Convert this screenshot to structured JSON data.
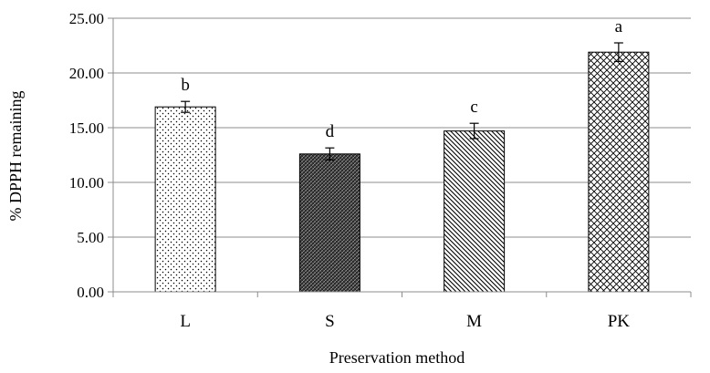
{
  "chart_data": {
    "type": "bar",
    "xlabel": "Preservation method",
    "ylabel": "% DPPH remaining",
    "ylim": [
      0,
      25
    ],
    "y_ticks": [
      "0.00",
      "5.00",
      "10.00",
      "15.00",
      "20.00",
      "25.00"
    ],
    "grid": "horizontal",
    "categories": [
      "L",
      "S",
      "M",
      "PK"
    ],
    "values": [
      16.9,
      12.6,
      14.7,
      21.9
    ],
    "errors": [
      0.5,
      0.55,
      0.7,
      0.85
    ],
    "significance_letters": [
      "b",
      "d",
      "c",
      "a"
    ],
    "patterns": [
      "dots",
      "dense-dark",
      "diagonal-lines",
      "crosshatch"
    ]
  }
}
